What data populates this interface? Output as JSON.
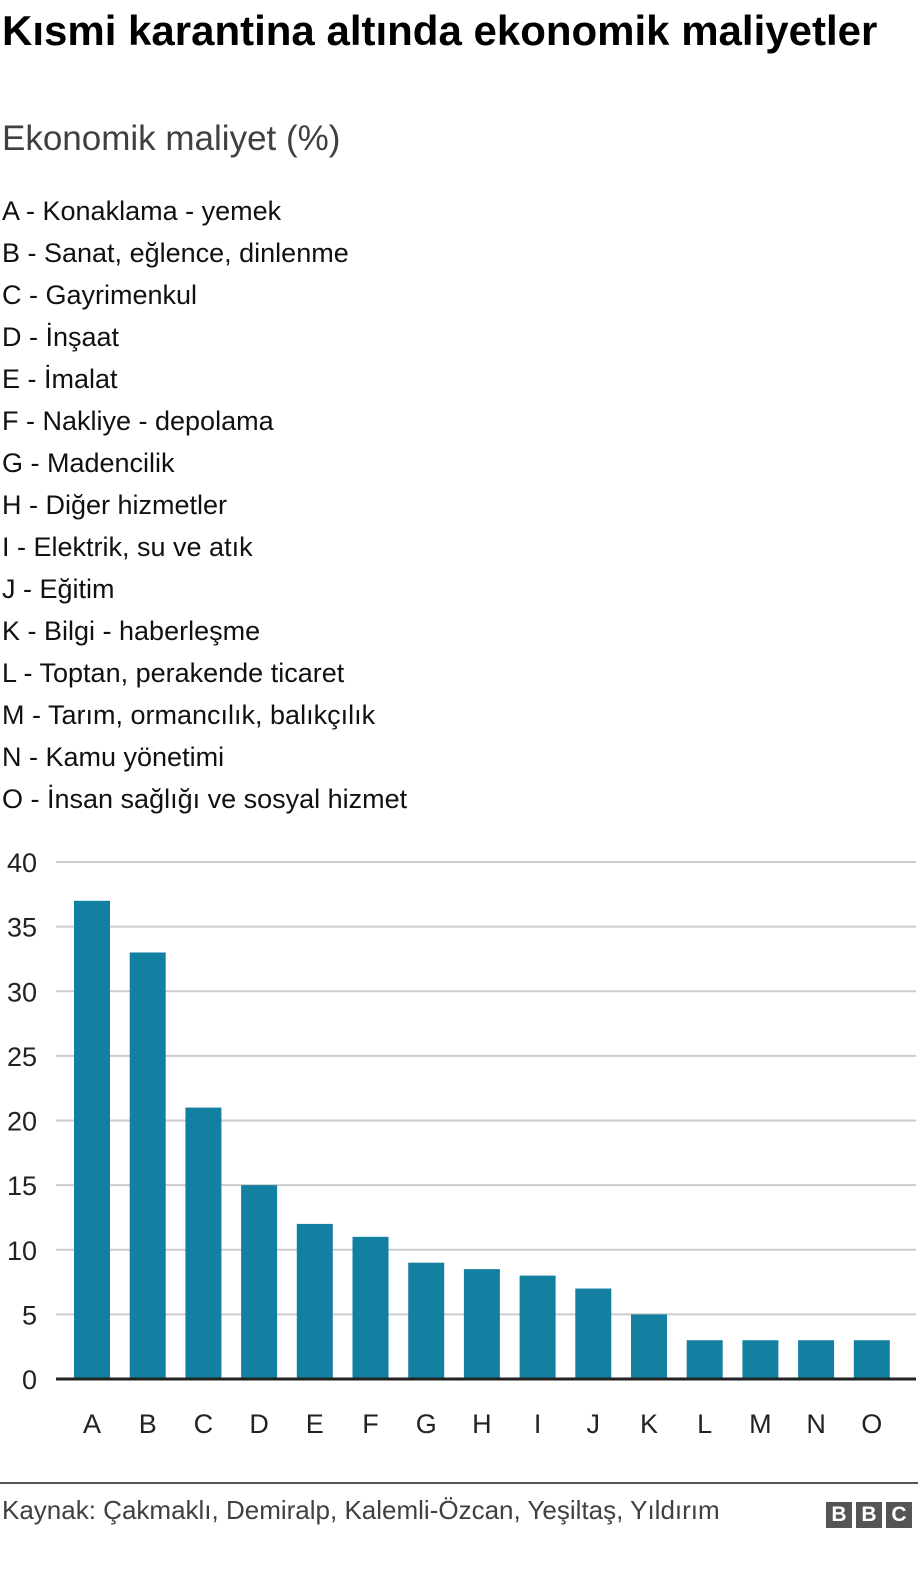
{
  "title": "Kısmi karantina altında ekonomik maliyetler",
  "subtitle": "Ekonomik maliyet (%)",
  "legend": [
    "A - Konaklama - yemek",
    "B - Sanat, eğlence, dinlenme",
    "C - Gayrimenkul",
    "D - İnşaat",
    "E - İmalat",
    "F - Nakliye - depolama",
    "G - Madencilik",
    "H - Diğer hizmetler",
    "I - Elektrik, su ve atık",
    "J - Eğitim",
    "K - Bilgi - haberleşme",
    "L - Toptan, perakende ticaret",
    "M - Tarım, ormancılık, balıkçılık",
    "N - Kamu yönetimi",
    "O - İnsan sağlığı ve sosyal hizmet"
  ],
  "chart_data": {
    "type": "bar",
    "categories": [
      "A",
      "B",
      "C",
      "D",
      "E",
      "F",
      "G",
      "H",
      "I",
      "J",
      "K",
      "L",
      "M",
      "N",
      "O"
    ],
    "values": [
      37,
      33,
      21,
      15,
      12,
      11,
      9,
      8.5,
      8,
      7,
      5,
      3,
      3,
      3,
      3
    ],
    "ylim": [
      0,
      40
    ],
    "yticks": [
      0,
      5,
      10,
      15,
      20,
      25,
      30,
      35,
      40
    ],
    "grid": true,
    "bar_color": "#1380a1",
    "grid_color": "#cccccc",
    "baseline_color": "#222222"
  },
  "source": "Kaynak: Çakmaklı, Demiralp, Kalemli-Özcan, Yeşiltaş, Yıldırım",
  "logo": [
    "B",
    "B",
    "C"
  ]
}
